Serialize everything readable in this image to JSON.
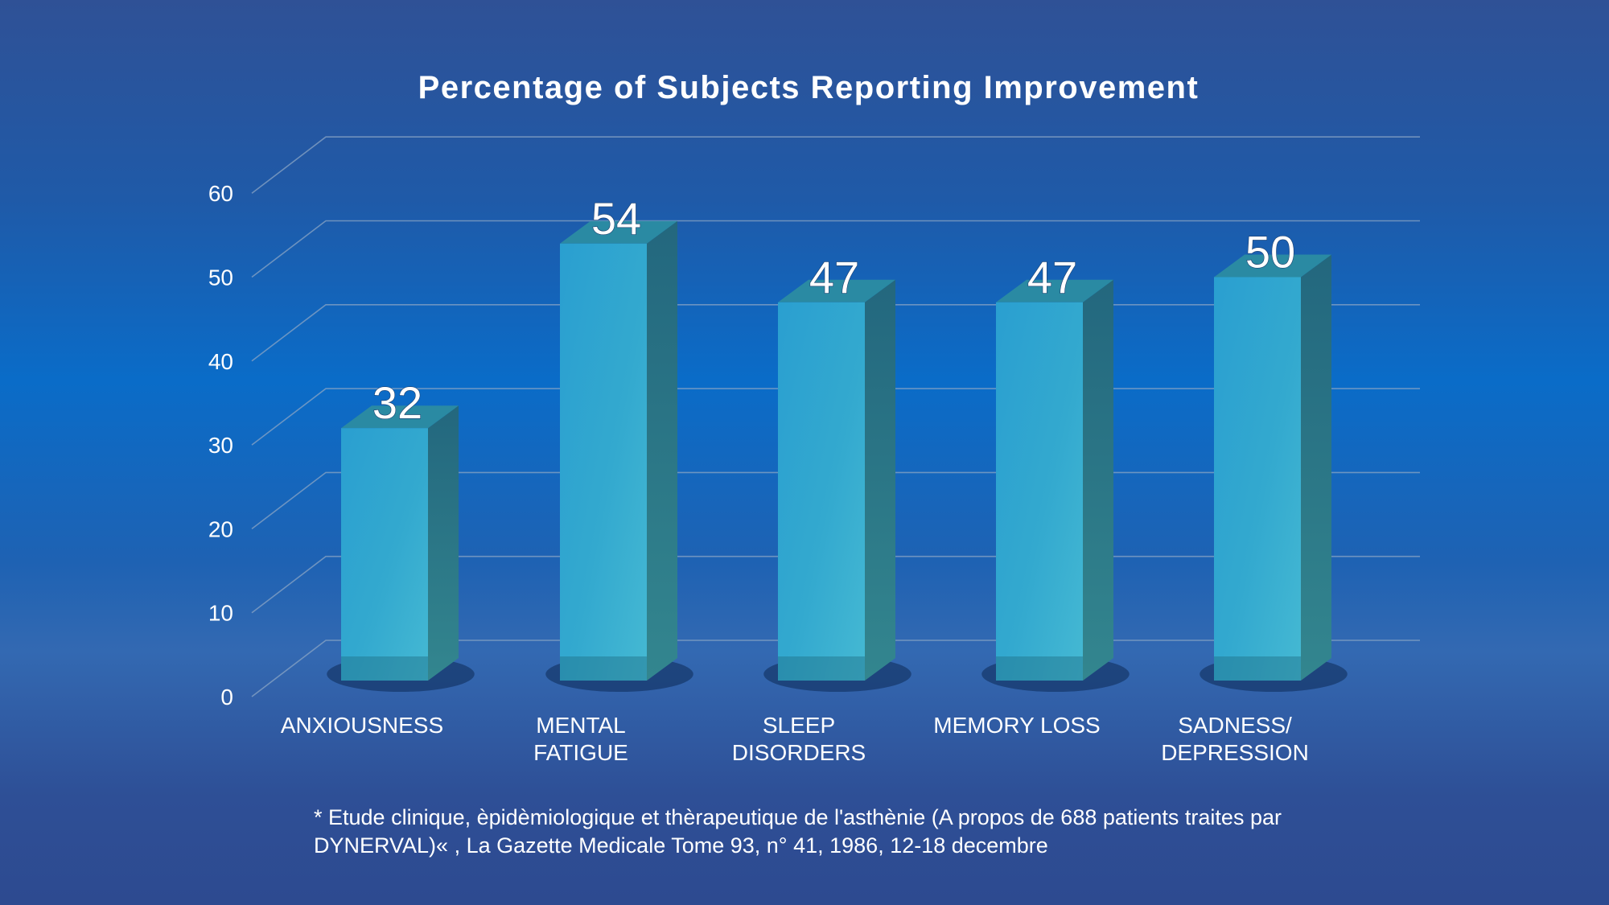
{
  "chart_data": {
    "type": "bar",
    "title": "Percentage of Subjects Reporting Improvement",
    "categories": [
      [
        "ANXIOUSNESS"
      ],
      [
        "MENTAL",
        "FATIGUE"
      ],
      [
        "SLEEP",
        "DISORDERS"
      ],
      [
        "MEMORY LOSS"
      ],
      [
        "SADNESS/",
        "DEPRESSION"
      ]
    ],
    "values": [
      32,
      54,
      47,
      47,
      50
    ],
    "value_labels": [
      "32",
      "54",
      "47",
      "47",
      "50"
    ],
    "ylim": [
      0,
      60
    ],
    "y_ticks": [
      "0",
      "10",
      "20",
      "30",
      "40",
      "50",
      "60"
    ],
    "xlabel": "",
    "ylabel": "",
    "grid": true,
    "style": "3d-column",
    "colors": {
      "bar_front": "#2fa5cf",
      "bar_side": "#2c7a8a",
      "bar_top": "#2a8aa3",
      "grid": "#8aa4c4"
    }
  },
  "footnote": {
    "line1": "* Etude clinique, èpidèmiologique et thèrapeutique de l'asthènie (A propos de 688 patients traites par",
    "line2": "DYNERVAL)« , La Gazette Medicale Tome 93, n° 41, 1986, 12-18 decembre"
  }
}
